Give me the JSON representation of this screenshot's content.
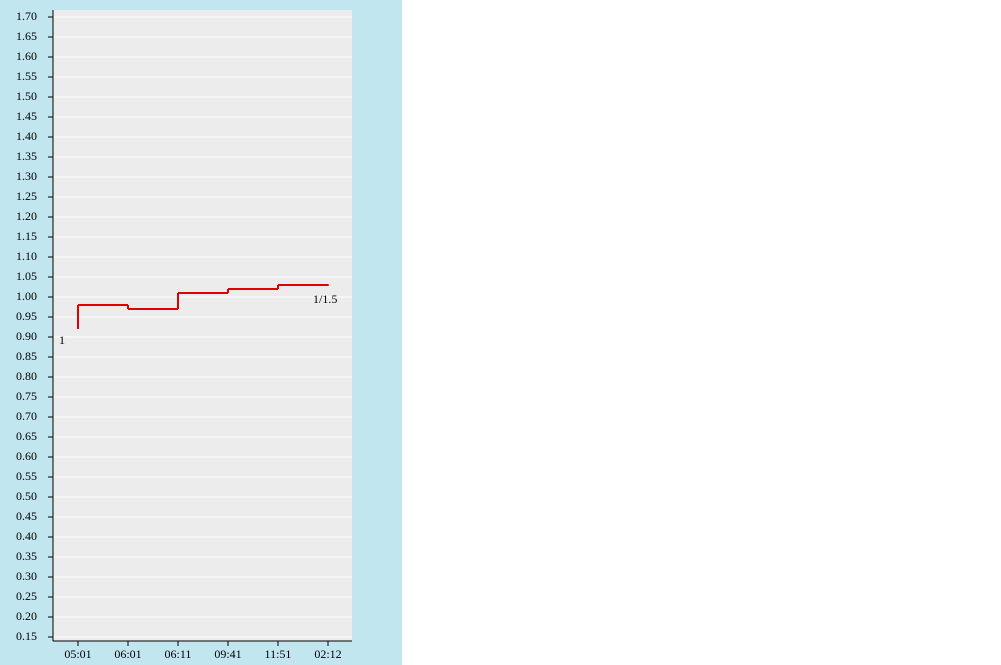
{
  "chart_data": {
    "type": "step",
    "categories": [
      "05:01",
      "06:01",
      "06:11",
      "09:41",
      "11:51",
      "02:12"
    ],
    "open": 0.92,
    "values": [
      0.98,
      0.97,
      1.01,
      1.02,
      1.03,
      1.03
    ],
    "color": "#e00000",
    "annotations": [
      "1",
      "1/1.5"
    ],
    "ylim": [
      0.14,
      1.7175
    ],
    "yticks": [
      {
        "value": 0.15,
        "label": "0.15"
      },
      {
        "value": 0.2,
        "label": "0.20"
      },
      {
        "value": 0.25,
        "label": "0.25"
      },
      {
        "value": 0.3,
        "label": "0.30"
      },
      {
        "value": 0.35,
        "label": "0.35"
      },
      {
        "value": 0.4,
        "label": "0.40"
      },
      {
        "value": 0.45,
        "label": "0.45"
      },
      {
        "value": 0.5,
        "label": "0.50"
      },
      {
        "value": 0.55,
        "label": "0.55"
      },
      {
        "value": 0.6,
        "label": "0.60"
      },
      {
        "value": 0.65,
        "label": "0.65"
      },
      {
        "value": 0.7,
        "label": "0.70"
      },
      {
        "value": 0.75,
        "label": "0.75"
      },
      {
        "value": 0.8,
        "label": "0.80"
      },
      {
        "value": 0.85,
        "label": "0.85"
      },
      {
        "value": 0.9,
        "label": "0.90"
      },
      {
        "value": 0.95,
        "label": "0.95"
      },
      {
        "value": 1.0,
        "label": "1.00"
      },
      {
        "value": 1.05,
        "label": "1.05"
      },
      {
        "value": 1.1,
        "label": "1.10"
      },
      {
        "value": 1.15,
        "label": "1.15"
      },
      {
        "value": 1.2,
        "label": "1.20"
      },
      {
        "value": 1.25,
        "label": "1.25"
      },
      {
        "value": 1.3,
        "label": "1.30"
      },
      {
        "value": 1.35,
        "label": "1.35"
      },
      {
        "value": 1.4,
        "label": "1.40"
      },
      {
        "value": 1.45,
        "label": "1.45"
      },
      {
        "value": 1.5,
        "label": "1.50"
      },
      {
        "value": 1.55,
        "label": "1.55"
      },
      {
        "value": 1.6,
        "label": "1.60"
      },
      {
        "value": 1.65,
        "label": "1.65"
      },
      {
        "value": 1.7,
        "label": "1.70"
      }
    ],
    "grid": true
  }
}
